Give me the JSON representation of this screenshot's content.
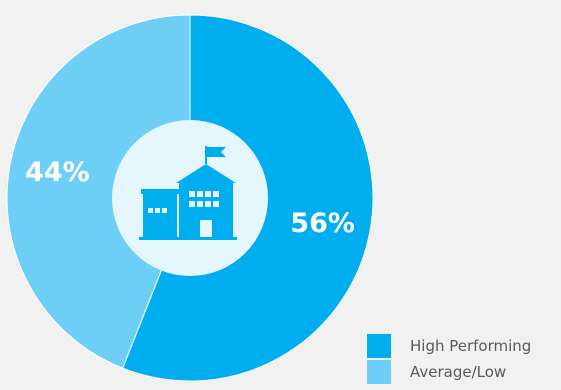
{
  "chart_data": {
    "type": "pie",
    "variant": "donut",
    "categories": [
      "High Performing",
      "Average/Low"
    ],
    "values": [
      56,
      44
    ],
    "data_labels": [
      "56%",
      "44%"
    ],
    "colors": [
      "#00aeef",
      "#6ecff6"
    ],
    "center_icon": "school-building-icon",
    "legend_position": "bottom-right"
  },
  "legend": {
    "items": [
      {
        "label": "High Performing",
        "color": "#00aeef"
      },
      {
        "label": "Average/Low",
        "color": "#6ecff6"
      }
    ]
  },
  "colors": {
    "background": "#f1f1f2",
    "hole": "#e6f6fd",
    "icon": "#00aeef"
  }
}
